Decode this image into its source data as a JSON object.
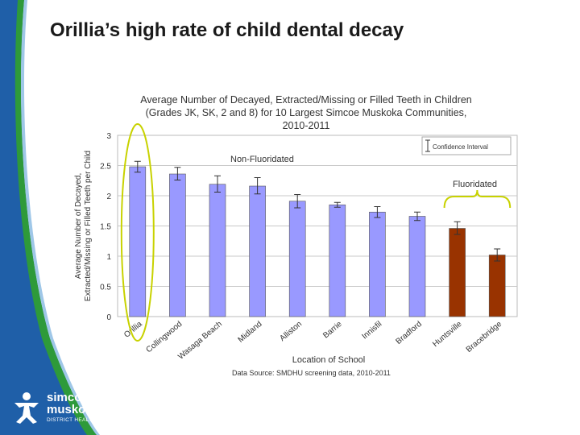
{
  "slide": {
    "title": "Orillia’s high rate of child dental decay",
    "colors": {
      "background": "#ffffff",
      "sidebar_blue": "#1f5fa8",
      "sidebar_green": "#2e9a3a"
    }
  },
  "logo": {
    "line1": "simcoe",
    "line2": "muskoka",
    "subtitle": "DISTRICT HEALTH UNIT"
  },
  "chart_data": {
    "type": "bar",
    "title": "Average Number of Decayed, Extracted/Missing or Filled Teeth in Children (Grades JK, SK, 2 and 8) for 10 Largest Simcoe Muskoka Communities, 2010-2011",
    "title_lines": [
      "Average Number of Decayed, Extracted/Missing or Filled Teeth in Children",
      "(Grades JK, SK, 2 and 8) for 10 Largest Simcoe Muskoka Communities,",
      "2010-2011"
    ],
    "xlabel": "Location of School",
    "ylabel": "Average Number of Decayed, Extracted/Missing or Filled Teeth per Child",
    "ylabel_lines": [
      "Average Number of Decayed,",
      "Extracted/Missing or Filled Teeth per Child"
    ],
    "ylim": [
      0,
      3
    ],
    "yticks": [
      "0",
      "0.5",
      "1",
      "1.5",
      "2",
      "2.5",
      "3"
    ],
    "grid": true,
    "categories": [
      "Orillia",
      "Collingwood",
      "Wasaga Beach",
      "Midland",
      "Alliston",
      "Barrie",
      "Innisfil",
      "Bradford",
      "Huntsville",
      "Bracebridge"
    ],
    "values": [
      2.48,
      2.36,
      2.19,
      2.16,
      1.91,
      1.85,
      1.73,
      1.66,
      1.46,
      1.02
    ],
    "error_low": [
      2.39,
      2.26,
      2.06,
      2.03,
      1.8,
      1.81,
      1.64,
      1.59,
      1.36,
      0.92
    ],
    "error_high": [
      2.57,
      2.47,
      2.33,
      2.3,
      2.02,
      1.89,
      1.82,
      1.73,
      1.57,
      1.12
    ],
    "group": [
      "non",
      "non",
      "non",
      "non",
      "non",
      "non",
      "non",
      "non",
      "fluor",
      "fluor"
    ],
    "colors": {
      "non_fluoridated": "#9999ff",
      "fluoridated": "#993300",
      "highlight": "#c8d200",
      "plot_bg": "#ffffff"
    },
    "annotations": {
      "non_fluoridated": "Non-Fluoridated",
      "fluoridated": "Fluoridated",
      "legend": "Confidence Interval"
    },
    "source": "Data Source:  SMDHU screening data, 2010-2011"
  }
}
